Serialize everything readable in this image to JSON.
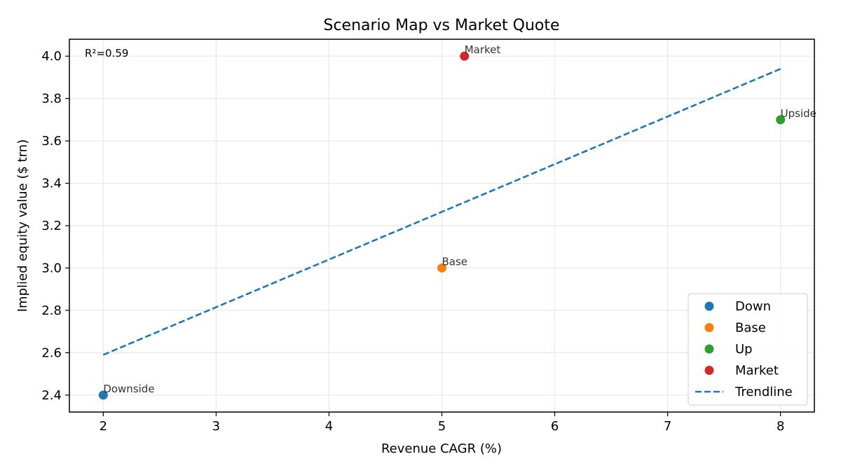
{
  "chart_data": {
    "type": "scatter",
    "title": "Scenario Map vs Market Quote",
    "xlabel": "Revenue CAGR (%)",
    "ylabel": "Implied equity value ($ trn)",
    "xlim": [
      1.7,
      8.3
    ],
    "ylim": [
      2.32,
      4.08
    ],
    "xticks": [
      2,
      3,
      4,
      5,
      6,
      7,
      8
    ],
    "yticks": [
      2.4,
      2.6,
      2.8,
      3.0,
      3.2,
      3.4,
      3.6,
      3.8,
      4.0
    ],
    "ytick_labels": [
      "2.4",
      "2.6",
      "2.8",
      "3.0",
      "3.2",
      "3.4",
      "3.6",
      "3.8",
      "4.0"
    ],
    "grid": true,
    "legend_position": "lower-right",
    "series": [
      {
        "name": "Down",
        "x": [
          2.0
        ],
        "y": [
          2.4
        ],
        "label": "Downside",
        "color": "#1f77b4"
      },
      {
        "name": "Base",
        "x": [
          5.0
        ],
        "y": [
          3.0
        ],
        "label": "Base",
        "color": "#ff7f0e"
      },
      {
        "name": "Up",
        "x": [
          8.0
        ],
        "y": [
          3.7
        ],
        "label": "Upside",
        "color": "#2ca02c"
      },
      {
        "name": "Market",
        "x": [
          5.2
        ],
        "y": [
          4.0
        ],
        "label": "Market",
        "color": "#d62728"
      }
    ],
    "trendline": {
      "name": "Trendline",
      "x": [
        2.0,
        8.0
      ],
      "y": [
        2.59,
        3.94
      ],
      "color": "#1f77b4",
      "style": "dashed"
    },
    "annotations": [
      {
        "text": "R²=0.59"
      }
    ]
  }
}
